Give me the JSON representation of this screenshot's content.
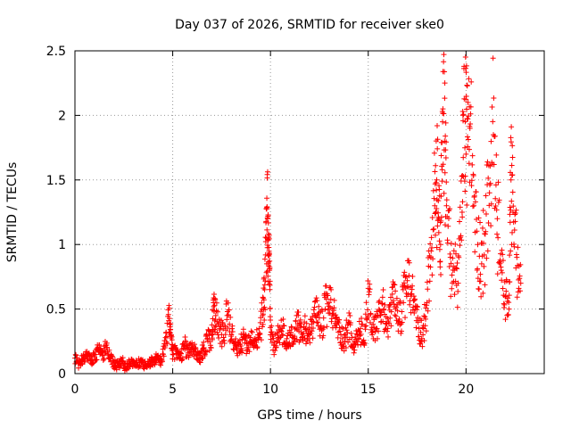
{
  "chart_data": {
    "type": "scatter",
    "title": "Day 037 of 2026, SRMTID for receiver ske0",
    "xlabel": "GPS time / hours",
    "ylabel": "SRMTID / TECUs",
    "xlim": [
      0,
      24
    ],
    "ylim": [
      0,
      2.5
    ],
    "xticks": [
      0,
      5,
      10,
      15,
      20
    ],
    "yticks": [
      0,
      0.5,
      1,
      1.5,
      2,
      2.5
    ],
    "x_tick_labels": [
      "0",
      "5",
      "10",
      "15",
      "20"
    ],
    "y_tick_labels": [
      "0",
      "0.5",
      "1",
      "1.5",
      "2",
      "2.5"
    ],
    "grid": true,
    "marker": "+",
    "series": [
      {
        "name": "SRMTID",
        "color": "#ff0000",
        "x": [
          0.0,
          0.2,
          0.4,
          0.6,
          0.8,
          1.0,
          1.2,
          1.4,
          1.6,
          1.8,
          2.0,
          2.2,
          2.4,
          2.6,
          2.8,
          3.0,
          3.2,
          3.4,
          3.6,
          3.8,
          4.0,
          4.2,
          4.4,
          4.6,
          4.8,
          4.9,
          5.0,
          5.2,
          5.4,
          5.6,
          5.8,
          6.0,
          6.2,
          6.4,
          6.6,
          6.8,
          7.0,
          7.1,
          7.2,
          7.4,
          7.6,
          7.8,
          8.0,
          8.2,
          8.4,
          8.6,
          8.8,
          9.0,
          9.2,
          9.4,
          9.6,
          9.7,
          9.8,
          9.85,
          9.9,
          9.95,
          10.0,
          10.2,
          10.4,
          10.6,
          10.8,
          11.0,
          11.2,
          11.4,
          11.6,
          11.8,
          12.0,
          12.2,
          12.4,
          12.6,
          12.8,
          13.0,
          13.2,
          13.4,
          13.6,
          13.8,
          14.0,
          14.2,
          14.4,
          14.6,
          14.8,
          15.0,
          15.2,
          15.4,
          15.6,
          15.8,
          16.0,
          16.2,
          16.4,
          16.6,
          16.8,
          17.0,
          17.2,
          17.4,
          17.6,
          17.8,
          18.0,
          18.2,
          18.4,
          18.5,
          18.6,
          18.7,
          18.8,
          18.9,
          19.0,
          19.2,
          19.4,
          19.6,
          19.8,
          19.9,
          20.0,
          20.1,
          20.2,
          20.4,
          20.6,
          20.8,
          21.0,
          21.2,
          21.4,
          21.6,
          21.8,
          22.0,
          22.2,
          22.3,
          22.4,
          22.6,
          22.8
        ],
        "y": [
          0.12,
          0.08,
          0.11,
          0.15,
          0.1,
          0.13,
          0.18,
          0.14,
          0.2,
          0.12,
          0.08,
          0.06,
          0.1,
          0.05,
          0.08,
          0.1,
          0.07,
          0.09,
          0.06,
          0.08,
          0.1,
          0.12,
          0.09,
          0.2,
          0.41,
          0.3,
          0.15,
          0.18,
          0.12,
          0.22,
          0.16,
          0.2,
          0.15,
          0.12,
          0.2,
          0.25,
          0.3,
          0.52,
          0.45,
          0.35,
          0.28,
          0.48,
          0.3,
          0.22,
          0.18,
          0.28,
          0.2,
          0.25,
          0.22,
          0.3,
          0.45,
          0.65,
          1.05,
          1.2,
          0.85,
          0.8,
          0.3,
          0.22,
          0.28,
          0.35,
          0.2,
          0.3,
          0.25,
          0.38,
          0.28,
          0.35,
          0.3,
          0.4,
          0.45,
          0.35,
          0.5,
          0.55,
          0.45,
          0.38,
          0.3,
          0.25,
          0.4,
          0.2,
          0.25,
          0.35,
          0.22,
          0.66,
          0.3,
          0.35,
          0.45,
          0.5,
          0.35,
          0.55,
          0.5,
          0.4,
          0.55,
          0.72,
          0.6,
          0.5,
          0.35,
          0.3,
          0.55,
          0.9,
          1.3,
          1.5,
          1.2,
          1.0,
          1.95,
          1.8,
          1.3,
          0.9,
          0.8,
          0.7,
          1.25,
          2.38,
          1.7,
          2.1,
          1.9,
          1.3,
          1.0,
          0.85,
          1.1,
          1.4,
          1.85,
          1.2,
          0.8,
          0.6,
          0.5,
          1.5,
          1.25,
          0.9,
          0.7
        ]
      }
    ],
    "noise_seed": 37
  }
}
